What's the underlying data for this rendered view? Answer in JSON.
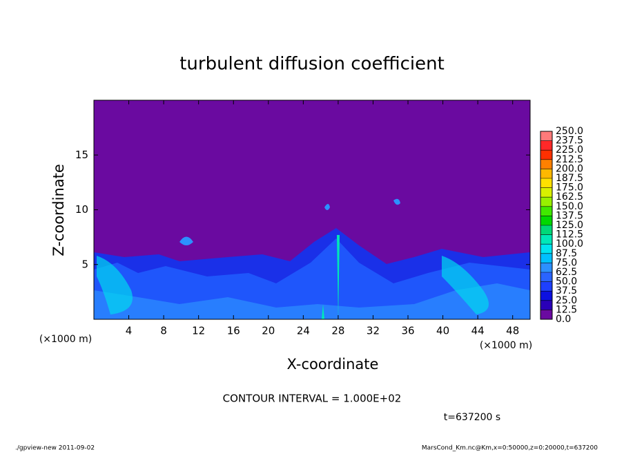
{
  "chart_data": {
    "type": "contour",
    "title": "turbulent diffusion coefficient",
    "xlabel": "X-coordinate",
    "ylabel": "Z-coordinate",
    "x_unit": "(×1000 m)",
    "y_unit": "(×1000 m)",
    "contour_interval": "CONTOUR INTERVAL = 1.000E+02",
    "time_label": "t=637200 s",
    "footer_left": "./gpview-new  2011-09-02",
    "footer_right": "MarsCond_Km.nc@Km,x=0:50000,z=0:20000,t=637200",
    "xlim": [
      0,
      50
    ],
    "xticks": [
      4,
      8,
      12,
      16,
      20,
      24,
      28,
      32,
      36,
      40,
      44,
      48
    ],
    "ylim": [
      0,
      20
    ],
    "yticks": [
      5,
      10,
      15
    ],
    "colorbar": {
      "levels": [
        {
          "value": 0,
          "label": "0.0"
        },
        12.5,
        {
          "value": 25,
          "label": "25.0"
        },
        37.5,
        {
          "value": 50,
          "label": "50.0"
        },
        62.5,
        {
          "value": 75,
          "label": "75.0"
        },
        87.5,
        {
          "value": 100,
          "label": "100.0"
        },
        112.5,
        {
          "value": 125,
          "label": "125.0"
        },
        137.5,
        {
          "value": 150,
          "label": "150.0"
        },
        162.5,
        {
          "value": 175,
          "label": "175.0"
        },
        187.5,
        {
          "value": 200,
          "label": "200.0"
        },
        212.5,
        {
          "value": 225,
          "label": "225.0"
        },
        237.5,
        {
          "value": 250,
          "label": "250.0"
        }
      ],
      "colors": [
        "#6a0aa0",
        "#2a00b8",
        "#0c10e0",
        "#1e40ff",
        "#2a64ff",
        "#2c90ff",
        "#00c0ff",
        "#00e4f0",
        "#00e8b8",
        "#00d878",
        "#00d800",
        "#40e800",
        "#98f000",
        "#d8f000",
        "#ffe000",
        "#ffb800",
        "#ff8000",
        "#ff3000",
        "#ff2828",
        "#ff7a7a"
      ]
    }
  }
}
